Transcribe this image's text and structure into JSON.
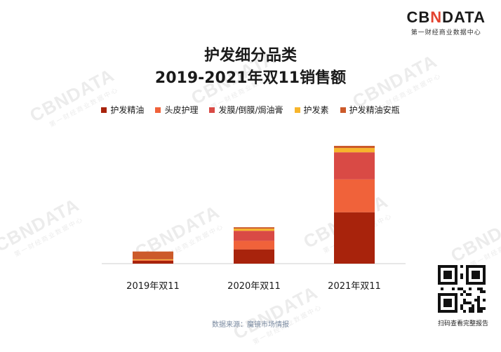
{
  "brand": {
    "prefix": "CB",
    "x": "N",
    "suffix": "DATA",
    "subtitle": "第一财经商业数据中心"
  },
  "title_line1": "护发细分品类",
  "title_line2": "2019-2021年双11销售额",
  "source": "数据来源：魔镜市场情报",
  "qr_caption": "扫码查看完整报告",
  "watermark": {
    "text": "CBNDATA",
    "sub": "第一财经商业数据中心"
  },
  "colors": {
    "护发精油": "#a8230c",
    "头皮护理": "#f0623a",
    "发膜/倒膜/焗油膏": "#d94a45",
    "护发素": "#f7b52c",
    "护发精油安瓶": "#cc5a2a"
  },
  "chart_data": {
    "type": "bar",
    "stacked": true,
    "title": "护发细分品类 2019-2021年双11销售额",
    "categories": [
      "2019年双11",
      "2020年双11",
      "2021年双11"
    ],
    "series": [
      {
        "name": "护发精油",
        "values": [
          4,
          20,
          72
        ]
      },
      {
        "name": "头皮护理",
        "values": [
          1,
          12,
          46
        ]
      },
      {
        "name": "发膜/倒膜/焗油膏",
        "values": [
          0,
          14,
          38
        ]
      },
      {
        "name": "护发素",
        "values": [
          1,
          3,
          6
        ]
      },
      {
        "name": "护发精油安瓶",
        "values": [
          11,
          2,
          3
        ]
      }
    ],
    "ylim": [
      0,
      165
    ],
    "grid": false,
    "legend": "top"
  }
}
